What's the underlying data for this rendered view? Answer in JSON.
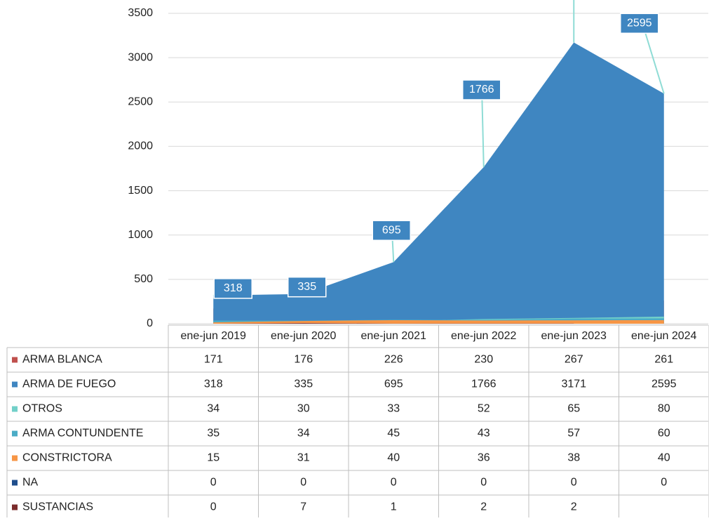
{
  "chart_data": {
    "type": "area",
    "categories": [
      "ene-jun 2019",
      "ene-jun 2020",
      "ene-jun 2021",
      "ene-jun 2022",
      "ene-jun 2023",
      "ene-jun 2024"
    ],
    "series": [
      {
        "name": "ARMA BLANCA",
        "color": "#c0504d",
        "values": [
          171,
          176,
          226,
          230,
          267,
          261
        ]
      },
      {
        "name": "ARMA DE FUEGO",
        "color": "#3f86c1",
        "values": [
          318,
          335,
          695,
          1766,
          3171,
          2595
        ]
      },
      {
        "name": "OTROS",
        "color": "#72d0c9",
        "values": [
          34,
          30,
          33,
          52,
          65,
          80
        ]
      },
      {
        "name": "ARMA CONTUNDENTE",
        "color": "#4bacc6",
        "values": [
          35,
          34,
          45,
          43,
          57,
          60
        ]
      },
      {
        "name": "CONSTRICTORA",
        "color": "#f79646",
        "values": [
          15,
          31,
          40,
          36,
          38,
          40
        ]
      },
      {
        "name": "NA",
        "color": "#1f4e8c",
        "values": [
          0,
          0,
          0,
          0,
          0,
          0
        ]
      },
      {
        "name": "SUSTANCIAS",
        "color": "#7b2c2c",
        "values": [
          0,
          7,
          1,
          2,
          2,
          null
        ]
      }
    ],
    "ylim": [
      0,
      3500
    ],
    "yticks": [
      0,
      500,
      1000,
      1500,
      2000,
      2500,
      3000,
      3500
    ],
    "grid": true,
    "labeled_series": 1
  }
}
